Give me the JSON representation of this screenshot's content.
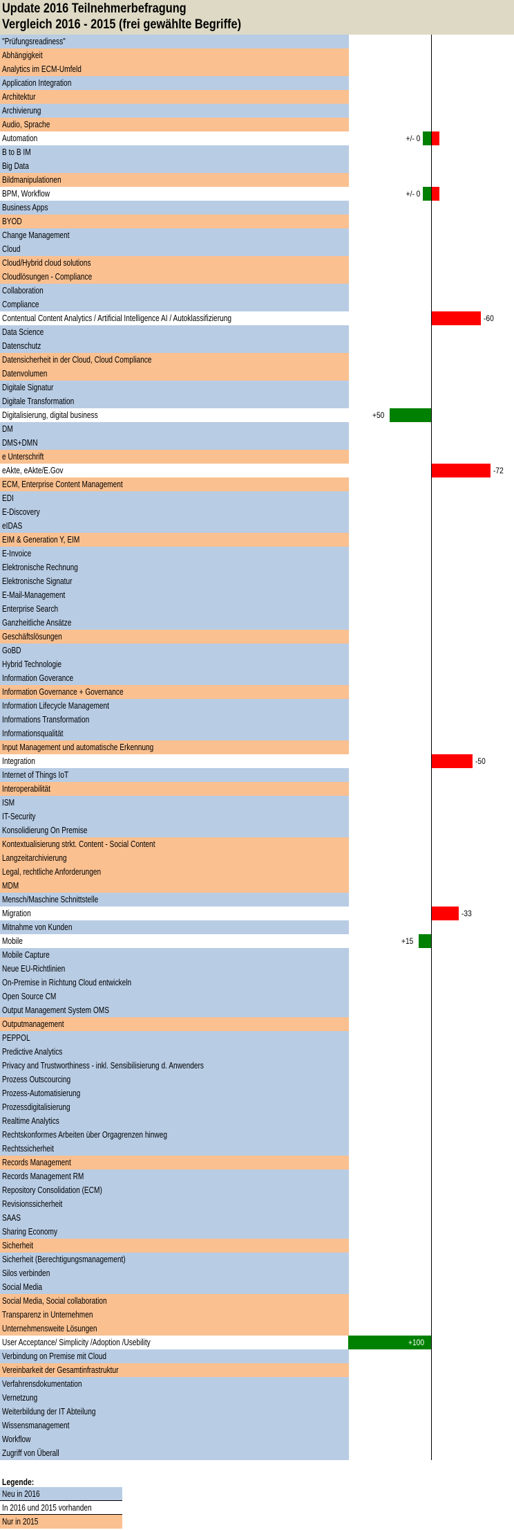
{
  "header": {
    "title": "Update 2016 Teilnehmerbefragung",
    "subtitle": "Vergleich 2016 - 2015 (frei gewählte Begriffe)"
  },
  "colors": {
    "neu_2016": "#b8cce4",
    "beide": "#ffffff",
    "nur_2015": "#fac090",
    "positive": "#008000",
    "negative": "#ff0000",
    "header": "#ddd9c4"
  },
  "legend": {
    "title": "Legende:",
    "items": [
      {
        "label": "Neu in 2016",
        "type": "b"
      },
      {
        "label": "In 2016 und 2015 vorhanden",
        "type": "w"
      },
      {
        "label": "Nur in 2015",
        "type": "o"
      }
    ]
  },
  "chart_data": {
    "type": "bar",
    "orientation": "horizontal",
    "title": "Update 2016 Teilnehmerbefragung – Vergleich 2016 - 2015 (frei gewählte Begriffe)",
    "xlim": [
      -100,
      100
    ],
    "rows": [
      {
        "label": "\"Prüfungsreadiness\"",
        "type": "b"
      },
      {
        "label": "Abhängigkeit",
        "type": "o"
      },
      {
        "label": "Analytics im ECM-Umfeld",
        "type": "o"
      },
      {
        "label": "Application Integration",
        "type": "b"
      },
      {
        "label": "Architektur",
        "type": "o"
      },
      {
        "label": "Archivierung",
        "type": "b"
      },
      {
        "label": "Audio, Sprache",
        "type": "o"
      },
      {
        "label": "Automation",
        "type": "w",
        "value": 0,
        "value_label": "+/- 0"
      },
      {
        "label": "B to B IM",
        "type": "b"
      },
      {
        "label": "Big Data",
        "type": "b"
      },
      {
        "label": "Bildmanipulationen",
        "type": "o"
      },
      {
        "label": "BPM, Workflow",
        "type": "w",
        "value": 0,
        "value_label": "+/- 0"
      },
      {
        "label": "Business Apps",
        "type": "b"
      },
      {
        "label": "BYOD",
        "type": "o"
      },
      {
        "label": "Change Management",
        "type": "b"
      },
      {
        "label": "Cloud",
        "type": "b"
      },
      {
        "label": "Cloud/Hybrid cloud solutions",
        "type": "o"
      },
      {
        "label": "Cloudlösungen - Compliance",
        "type": "o"
      },
      {
        "label": "Collaboration",
        "type": "b"
      },
      {
        "label": "Compliance",
        "type": "b"
      },
      {
        "label": "Contentual Content Analytics / Artificial Intelligence AI / Autoklassifizierung",
        "type": "w",
        "value": -60,
        "value_label": "-60"
      },
      {
        "label": "Data Science",
        "type": "b"
      },
      {
        "label": "Datenschutz",
        "type": "b"
      },
      {
        "label": "Datensicherheit in der Cloud, Cloud Compliance",
        "type": "o"
      },
      {
        "label": "Datenvolumen",
        "type": "o"
      },
      {
        "label": "Digitale Signatur",
        "type": "b"
      },
      {
        "label": "Digitale Transformation",
        "type": "b"
      },
      {
        "label": "Digitalisierung, digital business",
        "type": "w",
        "value": 50,
        "value_label": "+50"
      },
      {
        "label": "DM",
        "type": "b"
      },
      {
        "label": "DMS+DMN",
        "type": "b"
      },
      {
        "label": "e Unterschrift",
        "type": "o"
      },
      {
        "label": "eAkte, eAkte/E.Gov",
        "type": "w",
        "value": -72,
        "value_label": "-72"
      },
      {
        "label": "ECM, Enterprise Content Management",
        "type": "o"
      },
      {
        "label": "EDI",
        "type": "b"
      },
      {
        "label": "E-Discovery",
        "type": "b"
      },
      {
        "label": "eIDAS",
        "type": "b"
      },
      {
        "label": "EIM & Generation Y, EIM",
        "type": "o"
      },
      {
        "label": "E-Invoice",
        "type": "b"
      },
      {
        "label": "Elektronische Rechnung",
        "type": "b"
      },
      {
        "label": "Elektronische Signatur",
        "type": "b"
      },
      {
        "label": "E-Mail-Management",
        "type": "b"
      },
      {
        "label": "Enterprise Search",
        "type": "b"
      },
      {
        "label": "Ganzheitliche Ansätze",
        "type": "b"
      },
      {
        "label": "Geschäftslösungen",
        "type": "o"
      },
      {
        "label": "GoBD",
        "type": "b"
      },
      {
        "label": "Hybrid Technologie",
        "type": "b"
      },
      {
        "label": "Information Goverance",
        "type": "b"
      },
      {
        "label": "Information Governance + Governance",
        "type": "o"
      },
      {
        "label": "Information Lifecycle Management",
        "type": "b"
      },
      {
        "label": "Informations Transformation",
        "type": "b"
      },
      {
        "label": "Informationsqualität",
        "type": "b"
      },
      {
        "label": "Input Management und automatische Erkennung",
        "type": "o"
      },
      {
        "label": "Integration",
        "type": "w",
        "value": -50,
        "value_label": "-50"
      },
      {
        "label": "Internet of Things IoT",
        "type": "b"
      },
      {
        "label": "Interoperabilität",
        "type": "o"
      },
      {
        "label": "ISM",
        "type": "b"
      },
      {
        "label": "IT-Security",
        "type": "b"
      },
      {
        "label": "Konsolidierung  On Premise",
        "type": "b"
      },
      {
        "label": "Kontextualisierung strkt. Content - Social Content",
        "type": "o"
      },
      {
        "label": "Langzeitarchivierung",
        "type": "o"
      },
      {
        "label": "Legal, rechtliche Anforderungen",
        "type": "o"
      },
      {
        "label": "MDM",
        "type": "o"
      },
      {
        "label": "Mensch/Maschine Schnittstelle",
        "type": "b"
      },
      {
        "label": "Migration",
        "type": "w",
        "value": -33,
        "value_label": "-33"
      },
      {
        "label": "Mitnahme von Kunden",
        "type": "b"
      },
      {
        "label": "Mobile",
        "type": "w",
        "value": 15,
        "value_label": "+15"
      },
      {
        "label": "Mobile Capture",
        "type": "b"
      },
      {
        "label": "Neue EU-Richtlinien",
        "type": "b"
      },
      {
        "label": "On-Premise in Richtung Cloud entwickeln",
        "type": "b"
      },
      {
        "label": "Open Source CM",
        "type": "b"
      },
      {
        "label": "Output Management System OMS",
        "type": "b"
      },
      {
        "label": "Outputmanagement",
        "type": "o"
      },
      {
        "label": "PEPPOL",
        "type": "b"
      },
      {
        "label": "Predictive Analytics",
        "type": "b"
      },
      {
        "label": "Privacy and Trustworthiness - inkl. Sensibilisierung d. Anwenders",
        "type": "b"
      },
      {
        "label": "Prozess Outscourcing",
        "type": "b"
      },
      {
        "label": "Prozess-Automatisierung",
        "type": "b"
      },
      {
        "label": "Prozessdigitalisierung",
        "type": "b"
      },
      {
        "label": "Realtime Analytics",
        "type": "b"
      },
      {
        "label": "Rechtskonformes Arbeiten über Orgagrenzen hinweg",
        "type": "b"
      },
      {
        "label": "Rechtssicherheit",
        "type": "b"
      },
      {
        "label": "Records Management",
        "type": "o"
      },
      {
        "label": "Records Management RM",
        "type": "b"
      },
      {
        "label": "Repository Consolidation (ECM)",
        "type": "b"
      },
      {
        "label": "Revisionssicherheit",
        "type": "b"
      },
      {
        "label": "SAAS",
        "type": "b"
      },
      {
        "label": "Sharing Economy",
        "type": "b"
      },
      {
        "label": "Sicherheit",
        "type": "o"
      },
      {
        "label": "Sicherheit (Berechtigungsmanagement)",
        "type": "b"
      },
      {
        "label": "Silos verbinden",
        "type": "b"
      },
      {
        "label": "Social Media",
        "type": "b"
      },
      {
        "label": "Social Media, Social collaboration",
        "type": "o"
      },
      {
        "label": "Transparenz in Unternehmen",
        "type": "o"
      },
      {
        "label": "Unternehmensweite Lösungen",
        "type": "o"
      },
      {
        "label": "User Acceptance/ Simplicity /Adoption /Usebility",
        "type": "w",
        "value": 100,
        "value_label": "+100"
      },
      {
        "label": "Verbindung on Premise mit Cloud",
        "type": "b"
      },
      {
        "label": "Vereinbarkeit der Gesamtinfrastruktur",
        "type": "o"
      },
      {
        "label": "Verfahrensdokumentation",
        "type": "b"
      },
      {
        "label": "Vernetzung",
        "type": "b"
      },
      {
        "label": "Weiterbildung der IT Abteilung",
        "type": "b"
      },
      {
        "label": "Wissensmanagement",
        "type": "b"
      },
      {
        "label": "Workflow",
        "type": "b"
      },
      {
        "label": "Zugriff von Überall",
        "type": "b"
      }
    ]
  }
}
